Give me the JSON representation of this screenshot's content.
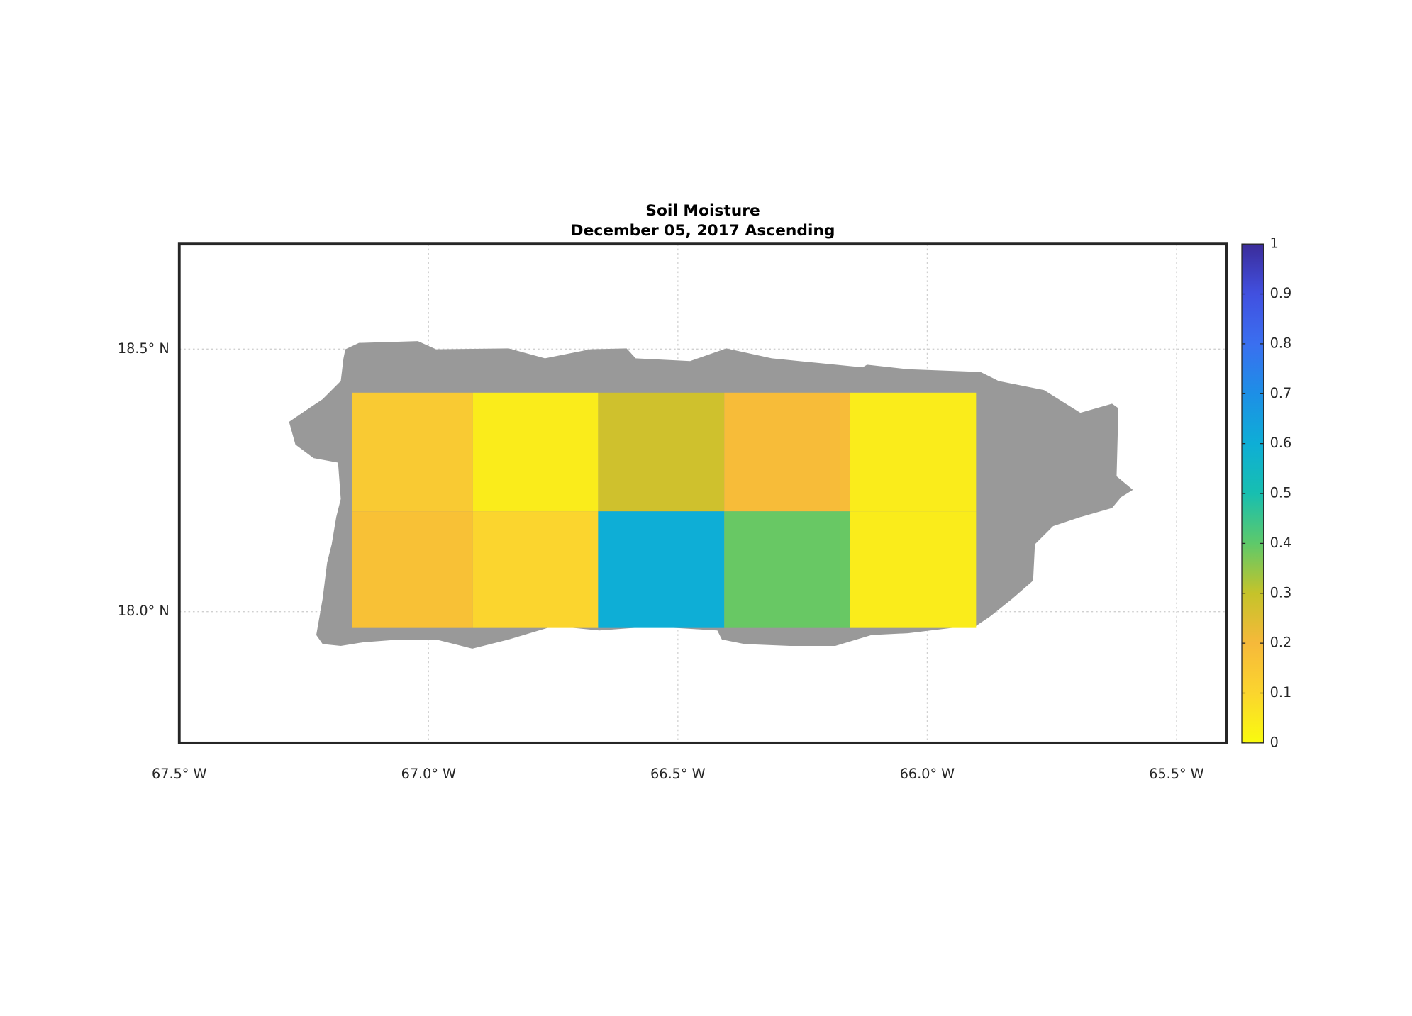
{
  "chart_data": {
    "type": "heatmap",
    "title": "Soil Moisture",
    "subtitle": "December 05, 2017 Ascending",
    "x_edges": [
      -67.153,
      -66.911,
      -66.66,
      -66.407,
      -66.155,
      -65.902
    ],
    "y_edges": [
      18.417,
      18.191,
      17.969
    ],
    "values": [
      [
        0.14,
        0.04,
        0.28,
        0.19,
        0.04
      ],
      [
        0.17,
        0.1,
        0.6,
        0.39,
        0.04
      ]
    ],
    "xlim": [
      -67.5,
      -65.4
    ],
    "ylim": [
      17.75,
      18.7
    ],
    "xticks": [
      {
        "value": -67.5,
        "label": "67.5° W"
      },
      {
        "value": -67.0,
        "label": "67.0° W"
      },
      {
        "value": -66.5,
        "label": "66.5° W"
      },
      {
        "value": -66.0,
        "label": "66.0° W"
      },
      {
        "value": -65.5,
        "label": "65.5° W"
      }
    ],
    "yticks": [
      {
        "value": 18.0,
        "label": "18.0° N"
      },
      {
        "value": 18.5,
        "label": "18.5° N"
      }
    ],
    "zlim": [
      0,
      1
    ],
    "zticks": [
      0,
      0.1,
      0.2,
      0.3,
      0.4,
      0.5,
      0.6,
      0.7,
      0.8,
      0.9,
      1
    ],
    "colormap": [
      "#f9fb0e",
      "#fbd52e",
      "#f6b93a",
      "#c5c32a",
      "#5ec96a",
      "#17bfb0",
      "#0eaed6",
      "#1d8fe6",
      "#3a6ff0",
      "#4150e0",
      "#3b2c9a"
    ],
    "land_color": "#999999",
    "grid": true
  }
}
